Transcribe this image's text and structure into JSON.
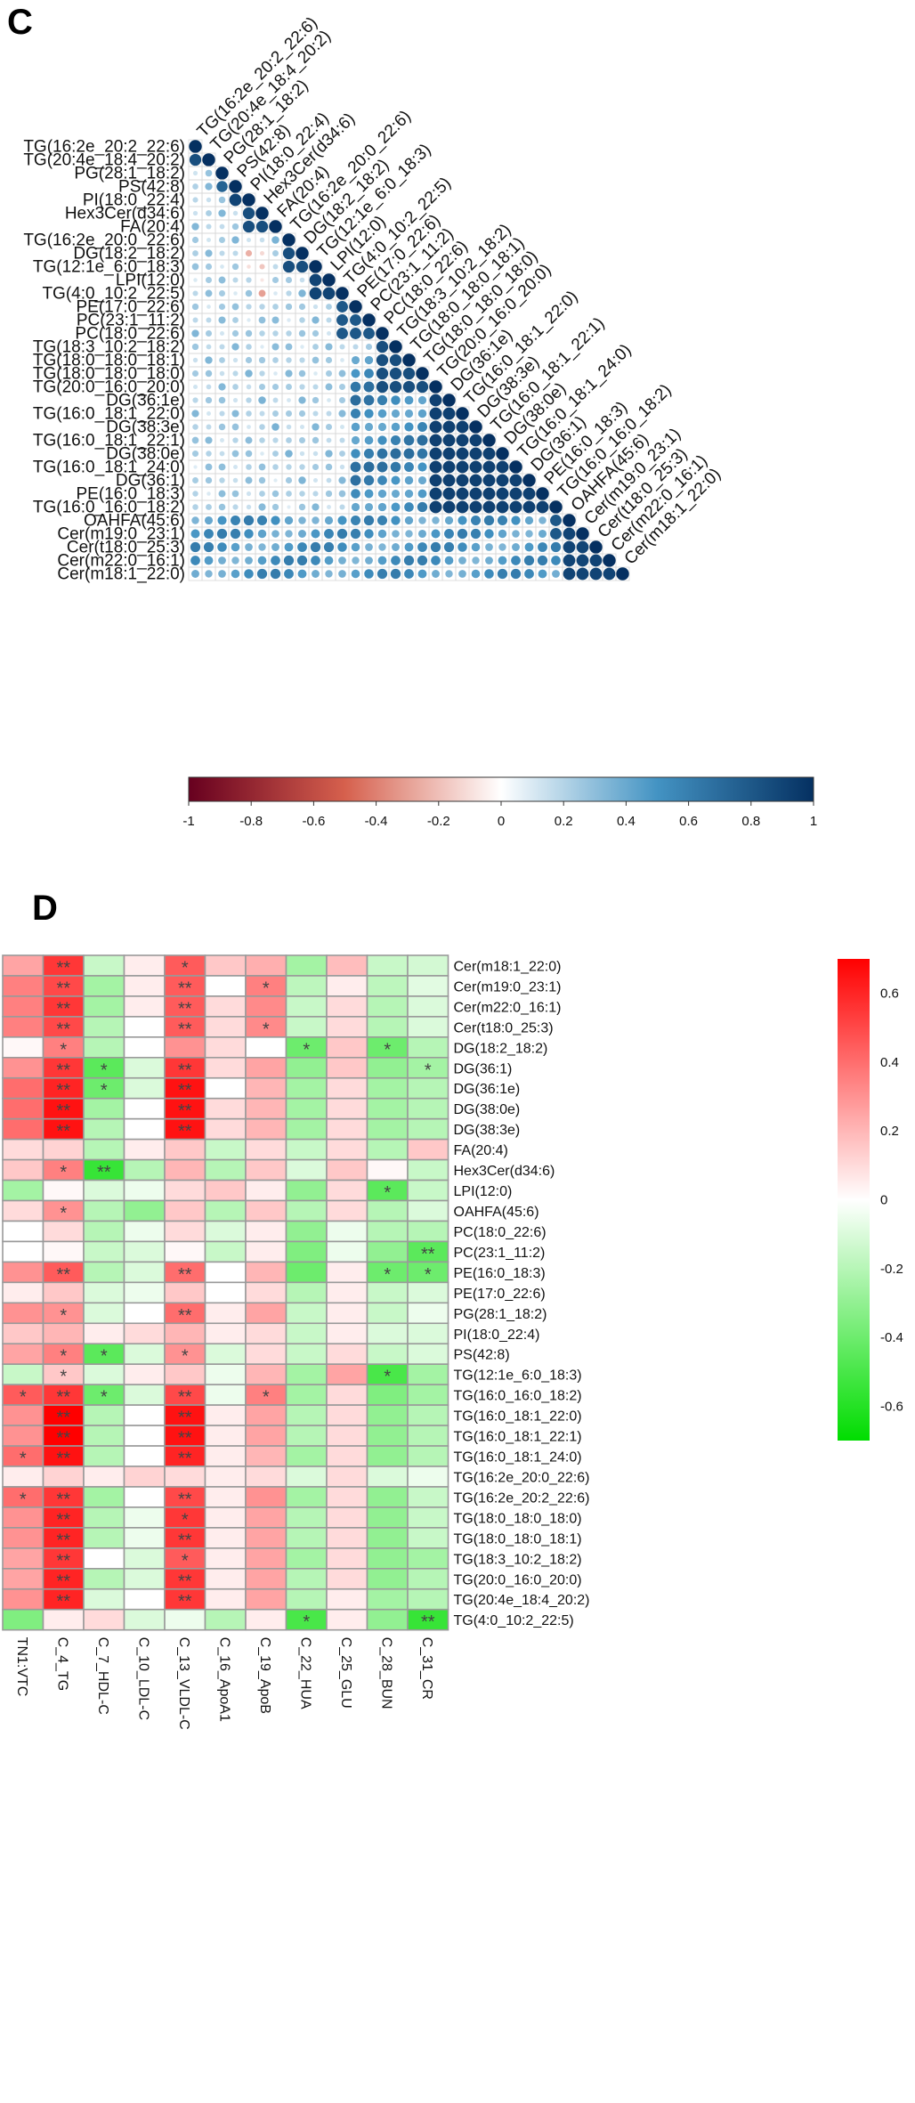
{
  "chart_data": [
    {
      "panel": "C",
      "type": "heatmap",
      "subtype": "correlation-circle-lower-triangle",
      "labels": [
        "TG(16:2e_20:2_22:6)",
        "TG(20:4e_18:4_20:2)",
        "PG(28:1_18:2)",
        "PS(42:8)",
        "PI(18:0_22:4)",
        "Hex3Cer(d34:6)",
        "FA(20:4)",
        "TG(16:2e_20:0_22:6)",
        "DG(18:2_18:2)",
        "TG(12:1e_6:0_18:3)",
        "LPI(12:0)",
        "TG(4:0_10:2_22:5)",
        "PE(17:0_22:6)",
        "PC(23:1_11:2)",
        "PC(18:0_22:6)",
        "TG(18:3_10:2_18:2)",
        "TG(18:0_18:0_18:1)",
        "TG(18:0_18:0_18:0)",
        "TG(20:0_16:0_20:0)",
        "DG(36:1e)",
        "TG(16:0_18:1_22:0)",
        "DG(38:3e)",
        "TG(16:0_18:1_22:1)",
        "DG(38:0e)",
        "TG(16:0_18:1_24:0)",
        "DG(36:1)",
        "PE(16:0_18:3)",
        "TG(16:0_16:0_18:2)",
        "OAHFA(45:6)",
        "Cer(m19:0_23:1)",
        "Cer(t18:0_25:3)",
        "Cer(m22:0_16:1)",
        "Cer(m18:1_22:0)"
      ],
      "color_scale": {
        "min": -1,
        "max": 1,
        "ticks": [
          "-1",
          "-0.8",
          "-0.6",
          "-0.4",
          "-0.2",
          "0",
          "0.2",
          "0.4",
          "0.6",
          "0.8",
          "1"
        ],
        "negative_color": "#67001f",
        "zero_color": "#ffffff",
        "positive_color": "#053061"
      },
      "values_note": "Lower-triangle Pearson correlations, estimated from circle size and colour"
    },
    {
      "panel": "D",
      "type": "heatmap",
      "rows": [
        "Cer(m18:1_22:0)",
        "Cer(m19:0_23:1)",
        "Cer(m22:0_16:1)",
        "Cer(t18:0_25:3)",
        "DG(18:2_18:2)",
        "DG(36:1)",
        "DG(36:1e)",
        "DG(38:0e)",
        "DG(38:3e)",
        "FA(20:4)",
        "Hex3Cer(d34:6)",
        "LPI(12:0)",
        "OAHFA(45:6)",
        "PC(18:0_22:6)",
        "PC(23:1_11:2)",
        "PE(16:0_18:3)",
        "PE(17:0_22:6)",
        "PG(28:1_18:2)",
        "PI(18:0_22:4)",
        "PS(42:8)",
        "TG(12:1e_6:0_18:3)",
        "TG(16:0_16:0_18:2)",
        "TG(16:0_18:1_22:0)",
        "TG(16:0_18:1_22:1)",
        "TG(16:0_18:1_24:0)",
        "TG(16:2e_20:0_22:6)",
        "TG(16:2e_20:2_22:6)",
        "TG(18:0_18:0_18:0)",
        "TG(18:0_18:0_18:1)",
        "TG(18:3_10:2_18:2)",
        "TG(20:0_16:0_20:0)",
        "TG(20:4e_18:4_20:2)",
        "TG(4:0_10:2_22:5)"
      ],
      "columns": [
        "TN1:VTC",
        "C_4_TG",
        "C_7_HDL-C",
        "C_10_LDL-C",
        "C_13_VLDL-C",
        "C_16_ApoA1",
        "C_19_ApoB",
        "C_22_HUA",
        "C_25_GLU",
        "C_28_BUN",
        "C_31_CR"
      ],
      "color_scale": {
        "min": -0.7,
        "max": 0.7,
        "ticks": [
          "0.6",
          "0.4",
          "0.2",
          "0",
          "-0.2",
          "-0.4",
          "-0.6"
        ],
        "negative_color": "#00dd00",
        "zero_color": "#ffffff",
        "positive_color": "#ff0000"
      },
      "significance": [
        "*",
        "**"
      ],
      "values_note": "Estimated from cell colour"
    }
  ],
  "panel_c_letter": "C",
  "panel_d_letter": "D"
}
